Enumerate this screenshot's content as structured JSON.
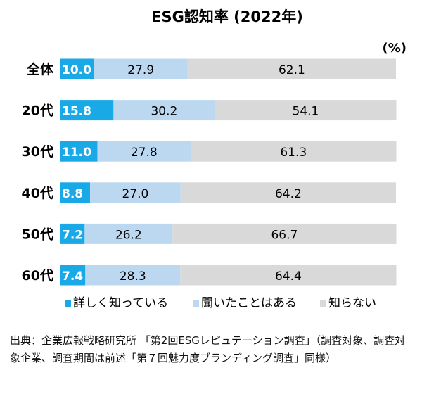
{
  "chart_data": {
    "type": "bar",
    "orientation": "horizontal",
    "stacked": true,
    "title": "ESG認知率 (2022年)",
    "unit": "(%)",
    "categories": [
      "全体",
      "20代",
      "30代",
      "40代",
      "50代",
      "60代"
    ],
    "series": [
      {
        "name": "詳しく知っている",
        "color": "#18a9e6",
        "values": [
          10.0,
          15.8,
          11.0,
          8.8,
          7.2,
          7.4
        ]
      },
      {
        "name": "聞いたことはある",
        "color": "#bcd8f0",
        "values": [
          27.9,
          30.2,
          27.8,
          27.0,
          26.2,
          28.3
        ]
      },
      {
        "name": "知らない",
        "color": "#d9d9d9",
        "values": [
          62.1,
          54.1,
          61.3,
          64.2,
          66.7,
          64.4
        ]
      }
    ],
    "xlim": [
      0,
      100
    ],
    "grid": false,
    "legend_position": "bottom"
  },
  "source_note": "出典：企業広報戦略研究所 「第2回ESGレピュテーション調査」（調査対象、調査対象企業、調査期間は前述「第７回魅力度ブランディング調査」同様）"
}
